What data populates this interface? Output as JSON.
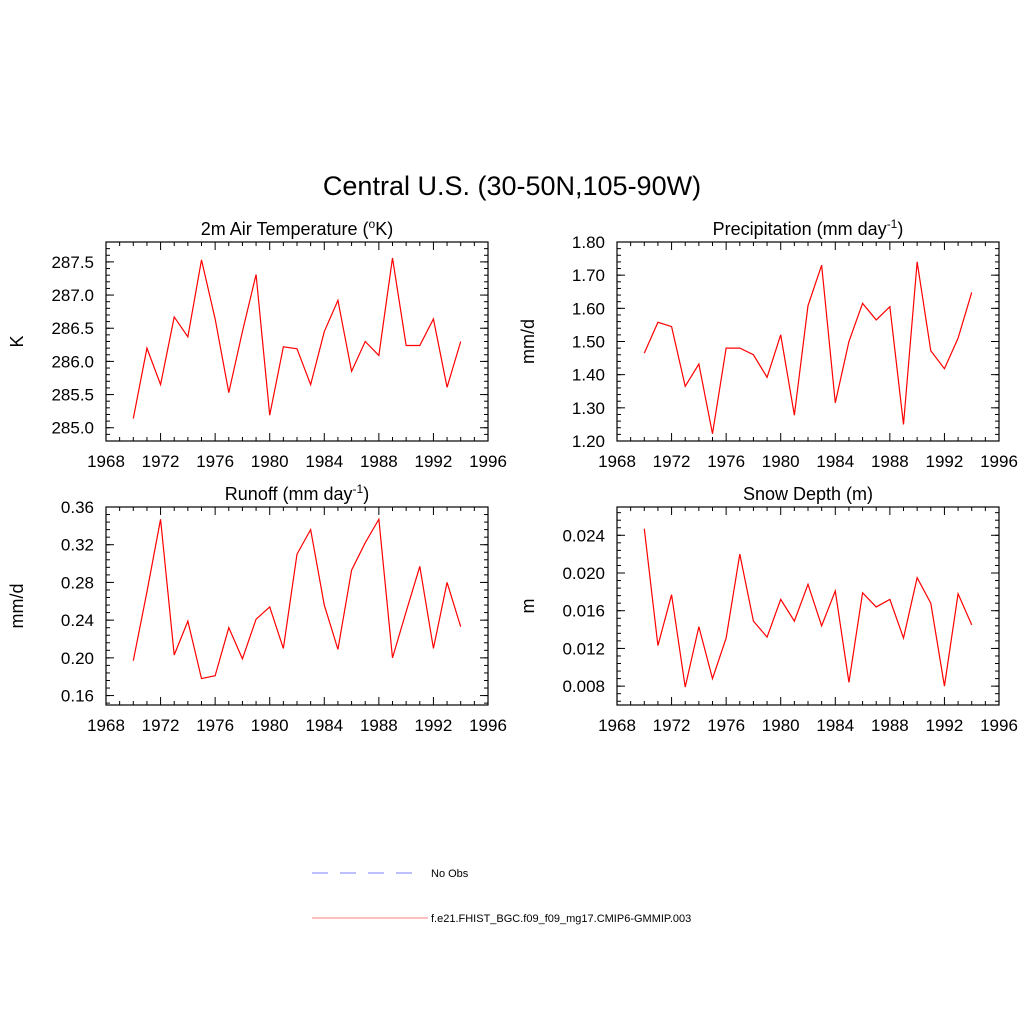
{
  "figure": {
    "title": "Central U.S. (30-50N,105-90W)",
    "line_color": "#ff0000",
    "obs_color": "#9999ff"
  },
  "chart_data": [
    {
      "type": "line",
      "key": "temp",
      "title": "2m Air Temperature (",
      "title_sup": "o",
      "title_after": "K)",
      "ylabel": "K",
      "xlim": [
        1968,
        1996
      ],
      "ylim": [
        284.8,
        287.8
      ],
      "xticks": [
        "1968",
        "1972",
        "1976",
        "1980",
        "1984",
        "1988",
        "1992",
        "1996"
      ],
      "yticks": [
        "285.0",
        "285.5",
        "286.0",
        "286.5",
        "287.0",
        "287.5"
      ],
      "x": [
        1970,
        1971,
        1972,
        1973,
        1974,
        1975,
        1976,
        1977,
        1978,
        1979,
        1980,
        1981,
        1982,
        1983,
        1984,
        1985,
        1986,
        1987,
        1988,
        1989,
        1990,
        1991,
        1992,
        1993,
        1994
      ],
      "values": [
        285.14,
        286.2,
        285.65,
        286.67,
        286.37,
        287.53,
        286.64,
        285.53,
        286.45,
        287.31,
        285.19,
        286.22,
        286.19,
        285.65,
        286.45,
        286.92,
        285.85,
        286.3,
        286.09,
        287.56,
        286.24,
        286.24,
        286.64,
        285.61,
        286.3
      ]
    },
    {
      "type": "line",
      "key": "precip",
      "title": "Precipitation (mm day",
      "title_sup": "-1",
      "title_after": ")",
      "ylabel": "mm/d",
      "xlim": [
        1968,
        1996
      ],
      "ylim": [
        1.2,
        1.8
      ],
      "xticks": [
        "1968",
        "1972",
        "1976",
        "1980",
        "1984",
        "1988",
        "1992",
        "1996"
      ],
      "yticks": [
        "1.20",
        "1.30",
        "1.40",
        "1.50",
        "1.60",
        "1.70",
        "1.80"
      ],
      "x": [
        1970,
        1971,
        1972,
        1973,
        1974,
        1975,
        1976,
        1977,
        1978,
        1979,
        1980,
        1981,
        1982,
        1983,
        1984,
        1985,
        1986,
        1987,
        1988,
        1989,
        1990,
        1991,
        1992,
        1993,
        1994
      ],
      "values": [
        1.465,
        1.558,
        1.545,
        1.365,
        1.432,
        1.222,
        1.48,
        1.48,
        1.46,
        1.392,
        1.52,
        1.278,
        1.608,
        1.73,
        1.315,
        1.5,
        1.615,
        1.565,
        1.605,
        1.25,
        1.74,
        1.472,
        1.418,
        1.51,
        1.648
      ]
    },
    {
      "type": "line",
      "key": "runoff",
      "title": "Runoff (mm day",
      "title_sup": "-1",
      "title_after": ")",
      "ylabel": "mm/d",
      "xlim": [
        1968,
        1996
      ],
      "ylim": [
        0.15,
        0.36
      ],
      "xticks": [
        "1968",
        "1972",
        "1976",
        "1980",
        "1984",
        "1988",
        "1992",
        "1996"
      ],
      "yticks": [
        "0.16",
        "0.20",
        "0.24",
        "0.28",
        "0.32",
        "0.36"
      ],
      "x": [
        1970,
        1971,
        1972,
        1973,
        1974,
        1975,
        1976,
        1977,
        1978,
        1979,
        1980,
        1981,
        1982,
        1983,
        1984,
        1985,
        1986,
        1987,
        1988,
        1989,
        1990,
        1991,
        1992,
        1993,
        1994
      ],
      "values": [
        0.197,
        0.27,
        0.347,
        0.203,
        0.239,
        0.178,
        0.181,
        0.232,
        0.199,
        0.241,
        0.254,
        0.21,
        0.31,
        0.336,
        0.256,
        0.209,
        0.293,
        0.322,
        0.347,
        0.2,
        0.249,
        0.297,
        0.21,
        0.28,
        0.233
      ]
    },
    {
      "type": "line",
      "key": "snow",
      "title": "Snow Depth (m)",
      "title_sup": "",
      "title_after": "",
      "ylabel": "m",
      "xlim": [
        1968,
        1996
      ],
      "ylim": [
        0.006,
        0.027
      ],
      "xticks": [
        "1968",
        "1972",
        "1976",
        "1980",
        "1984",
        "1988",
        "1992",
        "1996"
      ],
      "yticks": [
        "0.008",
        "0.012",
        "0.016",
        "0.020",
        "0.024"
      ],
      "x": [
        1970,
        1971,
        1972,
        1973,
        1974,
        1975,
        1976,
        1977,
        1978,
        1979,
        1980,
        1981,
        1982,
        1983,
        1984,
        1985,
        1986,
        1987,
        1988,
        1989,
        1990,
        1991,
        1992,
        1993,
        1994
      ],
      "values": [
        0.0247,
        0.0123,
        0.0177,
        0.0079,
        0.0143,
        0.0088,
        0.0131,
        0.022,
        0.0149,
        0.0132,
        0.0172,
        0.0149,
        0.0188,
        0.0144,
        0.0181,
        0.0084,
        0.0179,
        0.0164,
        0.0172,
        0.0131,
        0.0195,
        0.0168,
        0.008,
        0.0178,
        0.0145
      ]
    }
  ],
  "legend": {
    "obs_label": "No Obs",
    "model_label": "f.e21.FHIST_BGC.f09_f09_mg17.CMIP6-GMMIP.003"
  }
}
